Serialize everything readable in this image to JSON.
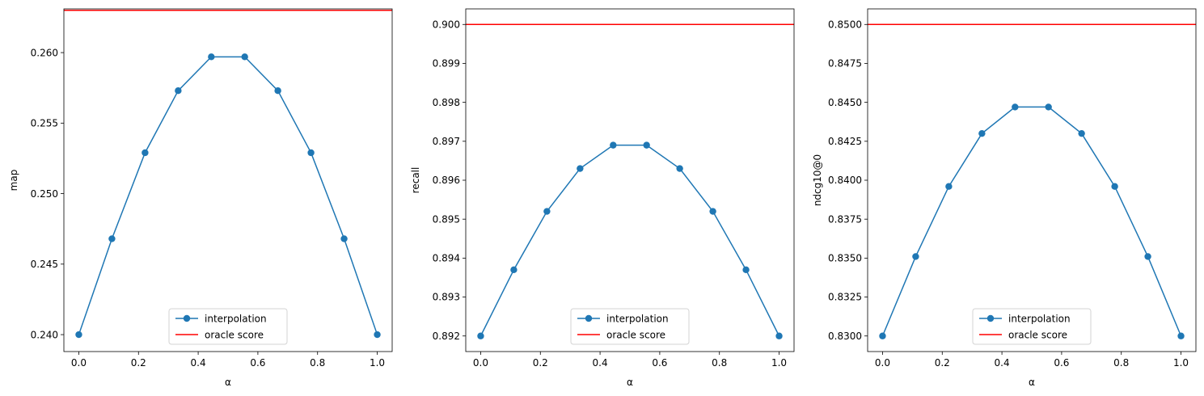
{
  "chart_data": [
    {
      "type": "line",
      "xlabel": "α",
      "ylabel": "map",
      "xlim": [
        -0.05,
        1.05
      ],
      "ylim": [
        0.2388,
        0.2631
      ],
      "xticks": [
        0.0,
        0.2,
        0.4,
        0.6,
        0.8,
        1.0
      ],
      "xtick_labels": [
        "0.0",
        "0.2",
        "0.4",
        "0.6",
        "0.8",
        "1.0"
      ],
      "yticks": [
        0.24,
        0.245,
        0.25,
        0.255,
        0.26
      ],
      "ytick_labels": [
        "0.240",
        "0.245",
        "0.250",
        "0.255",
        "0.260"
      ],
      "legend_position": "lower center",
      "grid": false,
      "series": [
        {
          "name": "interpolation",
          "kind": "line-marker",
          "color": "#1f77b4",
          "x": [
            0.0,
            0.111,
            0.222,
            0.333,
            0.444,
            0.556,
            0.667,
            0.778,
            0.889,
            1.0
          ],
          "values": [
            0.24,
            0.2468,
            0.2529,
            0.2573,
            0.2597,
            0.2597,
            0.2573,
            0.2529,
            0.2468,
            0.24
          ]
        },
        {
          "name": "oracle score",
          "kind": "hline",
          "color": "#ff0000",
          "value": 0.263
        }
      ]
    },
    {
      "type": "line",
      "xlabel": "α",
      "ylabel": "recall",
      "xlim": [
        -0.05,
        1.05
      ],
      "ylim": [
        0.8916,
        0.9004
      ],
      "xticks": [
        0.0,
        0.2,
        0.4,
        0.6,
        0.8,
        1.0
      ],
      "xtick_labels": [
        "0.0",
        "0.2",
        "0.4",
        "0.6",
        "0.8",
        "1.0"
      ],
      "yticks": [
        0.892,
        0.893,
        0.894,
        0.895,
        0.896,
        0.897,
        0.898,
        0.899,
        0.9
      ],
      "ytick_labels": [
        "0.892",
        "0.893",
        "0.894",
        "0.895",
        "0.896",
        "0.897",
        "0.898",
        "0.899",
        "0.900"
      ],
      "legend_position": "lower center",
      "grid": false,
      "series": [
        {
          "name": "interpolation",
          "kind": "line-marker",
          "color": "#1f77b4",
          "x": [
            0.0,
            0.111,
            0.222,
            0.333,
            0.444,
            0.556,
            0.667,
            0.778,
            0.889,
            1.0
          ],
          "values": [
            0.892,
            0.8937,
            0.8952,
            0.8963,
            0.8969,
            0.8969,
            0.8963,
            0.8952,
            0.8937,
            0.892
          ]
        },
        {
          "name": "oracle score",
          "kind": "hline",
          "color": "#ff0000",
          "value": 0.9
        }
      ]
    },
    {
      "type": "line",
      "xlabel": "α",
      "ylabel": "ndcg10@0",
      "xlim": [
        -0.05,
        1.05
      ],
      "ylim": [
        0.829,
        0.851
      ],
      "xticks": [
        0.0,
        0.2,
        0.4,
        0.6,
        0.8,
        1.0
      ],
      "xtick_labels": [
        "0.0",
        "0.2",
        "0.4",
        "0.6",
        "0.8",
        "1.0"
      ],
      "yticks": [
        0.83,
        0.8325,
        0.835,
        0.8375,
        0.84,
        0.8425,
        0.845,
        0.8475,
        0.85
      ],
      "ytick_labels": [
        "0.8300",
        "0.8325",
        "0.8350",
        "0.8375",
        "0.8400",
        "0.8425",
        "0.8450",
        "0.8475",
        "0.8500"
      ],
      "legend_position": "lower center",
      "grid": false,
      "series": [
        {
          "name": "interpolation",
          "kind": "line-marker",
          "color": "#1f77b4",
          "x": [
            0.0,
            0.111,
            0.222,
            0.333,
            0.444,
            0.556,
            0.667,
            0.778,
            0.889,
            1.0
          ],
          "values": [
            0.83,
            0.8351,
            0.8396,
            0.843,
            0.8447,
            0.8447,
            0.843,
            0.8396,
            0.8351,
            0.83
          ]
        },
        {
          "name": "oracle score",
          "kind": "hline",
          "color": "#ff0000",
          "value": 0.85
        }
      ]
    }
  ]
}
